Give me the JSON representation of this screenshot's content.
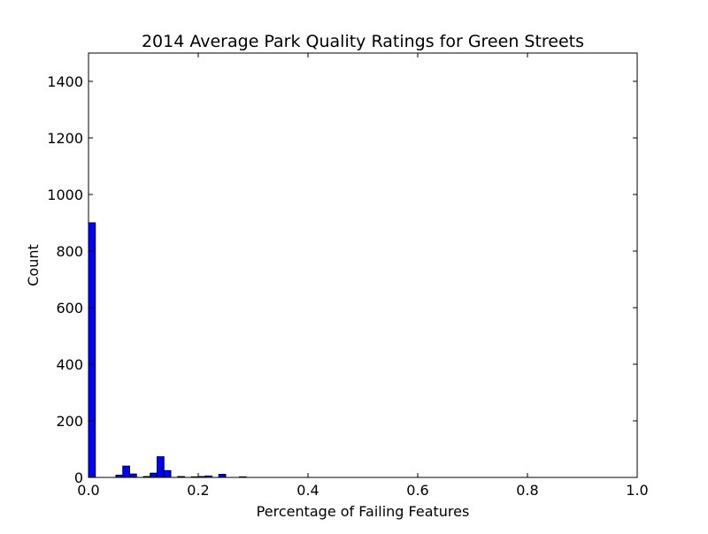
{
  "chart_data": {
    "type": "bar",
    "title": "2014 Average Park Quality Ratings for Green Streets",
    "xlabel": "Percentage of Failing Features",
    "ylabel": "Count",
    "xlim": [
      0.0,
      1.0
    ],
    "ylim": [
      0,
      1500
    ],
    "grid": false,
    "bar_color": "#0000ff",
    "x_ticks": [
      0.0,
      0.2,
      0.4,
      0.6,
      0.8,
      1.0
    ],
    "x_tick_labels": [
      "0.0",
      "0.2",
      "0.4",
      "0.6",
      "0.8",
      "1.0"
    ],
    "y_ticks": [
      0,
      200,
      400,
      600,
      800,
      1000,
      1200,
      1400
    ],
    "y_tick_labels": [
      "0",
      "200",
      "400",
      "600",
      "800",
      "1000",
      "1200",
      "1400"
    ],
    "bin_width": 0.0125,
    "bins": [
      {
        "x": 0.0,
        "value": 900
      },
      {
        "x": 0.0125,
        "value": 0
      },
      {
        "x": 0.025,
        "value": 0
      },
      {
        "x": 0.0375,
        "value": 0
      },
      {
        "x": 0.05,
        "value": 8
      },
      {
        "x": 0.0625,
        "value": 40
      },
      {
        "x": 0.075,
        "value": 12
      },
      {
        "x": 0.0875,
        "value": 0
      },
      {
        "x": 0.1,
        "value": 3
      },
      {
        "x": 0.1125,
        "value": 15
      },
      {
        "x": 0.125,
        "value": 73
      },
      {
        "x": 0.1375,
        "value": 24
      },
      {
        "x": 0.15,
        "value": 0
      },
      {
        "x": 0.1625,
        "value": 3
      },
      {
        "x": 0.175,
        "value": 0
      },
      {
        "x": 0.1875,
        "value": 2
      },
      {
        "x": 0.2,
        "value": 3
      },
      {
        "x": 0.2125,
        "value": 5
      },
      {
        "x": 0.225,
        "value": 0
      },
      {
        "x": 0.2375,
        "value": 11
      },
      {
        "x": 0.25,
        "value": 0
      },
      {
        "x": 0.2625,
        "value": 0
      },
      {
        "x": 0.275,
        "value": 2
      }
    ]
  }
}
